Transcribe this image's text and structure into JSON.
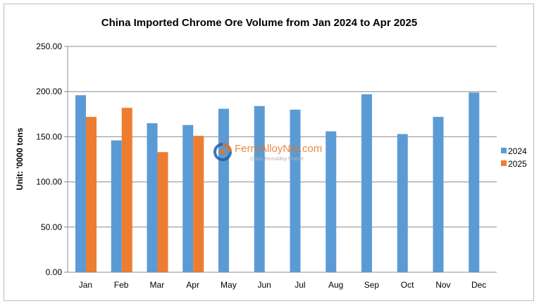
{
  "chart_data": {
    "type": "bar",
    "title": "China Imported Chrome Ore Volume from Jan 2024 to Apr 2025",
    "ylabel": "Unit: '0000 tons",
    "xlabel": "",
    "ylim": [
      0,
      250
    ],
    "yticks": [
      "0.00",
      "50.00",
      "100.00",
      "150.00",
      "200.00",
      "250.00"
    ],
    "ytick_values": [
      0,
      50,
      100,
      150,
      200,
      250
    ],
    "grid": true,
    "legend_position": "right",
    "categories": [
      "Jan",
      "Feb",
      "Mar",
      "Apr",
      "May",
      "Jun",
      "Jul",
      "Aug",
      "Sep",
      "Oct",
      "Nov",
      "Dec"
    ],
    "series": [
      {
        "name": "2024",
        "color": "#5b9bd5",
        "values": [
          196,
          146,
          165,
          163,
          181,
          184,
          180,
          156,
          197,
          153,
          172,
          199
        ]
      },
      {
        "name": "2025",
        "color": "#ed7d31",
        "values": [
          172,
          182,
          133,
          151,
          null,
          null,
          null,
          null,
          null,
          null,
          null,
          null
        ]
      }
    ]
  },
  "watermark": {
    "logo_icon": "ferroalloynet-logo-icon",
    "text": "FerroAlloyNet.com",
    "subtext": "China FerroAlloy Market"
  }
}
